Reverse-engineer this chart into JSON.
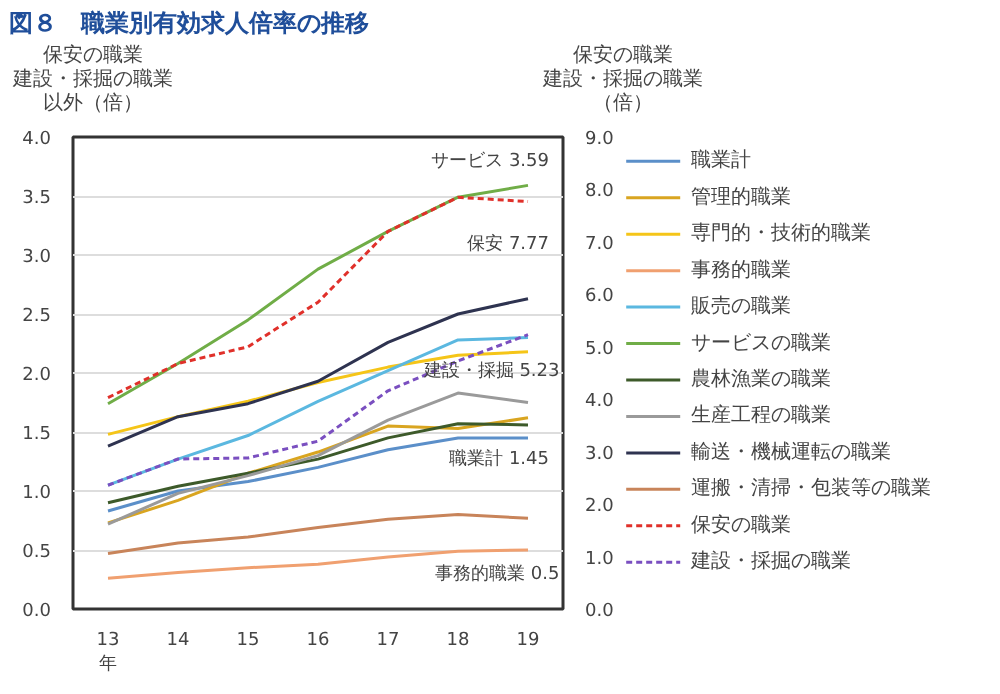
{
  "chart_data": {
    "type": "line",
    "title": "図８　職業別有効求人倍率の推移",
    "ylabel": "保安の職業建設・採掘の職業以外（倍）",
    "y2label": "保安の職業建設・採掘の職業（倍）",
    "x": [
      13,
      14,
      15,
      16,
      17,
      18,
      19
    ],
    "xlim": [
      12.5,
      19.5
    ],
    "xticks": [
      {
        "value": 13,
        "label": "13\n年"
      },
      14,
      15,
      16,
      17,
      18,
      19
    ],
    "ylim": [
      0,
      4
    ],
    "yticks": [
      {
        "value": 0,
        "label": "0.0"
      },
      0.5,
      {
        "value": 1,
        "label": "1.0"
      },
      1.5,
      {
        "value": 2,
        "label": "2.0"
      },
      2.5,
      {
        "value": 3,
        "label": "3.0"
      },
      3.5,
      {
        "value": 4,
        "label": "4.0"
      }
    ],
    "y2lim": [
      0,
      9
    ],
    "y2ticks": [
      {
        "value": 0,
        "label": "0.0"
      },
      {
        "value": 1,
        "label": "1.0"
      },
      {
        "value": 2,
        "label": "2.0"
      },
      {
        "value": 3,
        "label": "3.0"
      },
      {
        "value": 4,
        "label": "4.0"
      },
      {
        "value": 5,
        "label": "5.0"
      },
      {
        "value": 6,
        "label": "6.0"
      },
      {
        "value": 7,
        "label": "7.0"
      },
      {
        "value": 8,
        "label": "8.0"
      },
      {
        "value": 9,
        "label": "9.0"
      }
    ],
    "grid": "y",
    "legend": "right",
    "marker": "none",
    "series": [
      {
        "name": "職業計",
        "color": "#5b8fc9",
        "values": [
          0.83,
          1.0,
          1.08,
          1.2,
          1.35,
          1.45,
          1.45
        ]
      },
      {
        "name": "管理的職業",
        "color": "#d9a520",
        "values": [
          0.73,
          0.92,
          1.15,
          1.33,
          1.55,
          1.53,
          1.62
        ]
      },
      {
        "name": "専門的・技術的職業",
        "color": "#f5c518",
        "values": [
          1.48,
          1.63,
          1.76,
          1.92,
          2.05,
          2.15,
          2.18
        ]
      },
      {
        "name": "事務的職業",
        "color": "#f0a070",
        "values": [
          0.26,
          0.31,
          0.35,
          0.38,
          0.44,
          0.49,
          0.5
        ]
      },
      {
        "name": "販売の職業",
        "color": "#5bb8e0",
        "values": [
          1.05,
          1.27,
          1.47,
          1.76,
          2.02,
          2.28,
          2.3
        ]
      },
      {
        "name": "サービスの職業",
        "color": "#70ad47",
        "values": [
          1.74,
          2.08,
          2.45,
          2.88,
          3.2,
          3.49,
          3.59
        ]
      },
      {
        "name": "農林漁業の職業",
        "color": "#3d5a2a",
        "values": [
          0.9,
          1.04,
          1.15,
          1.27,
          1.45,
          1.57,
          1.56
        ]
      },
      {
        "name": "生産工程の職業",
        "color": "#9a9a9a",
        "values": [
          0.72,
          0.98,
          1.13,
          1.3,
          1.6,
          1.83,
          1.75
        ]
      },
      {
        "name": "輸送・機械運転の職業",
        "color": "#2e3350",
        "values": [
          1.38,
          1.63,
          1.74,
          1.93,
          2.26,
          2.5,
          2.63
        ]
      },
      {
        "name": "運搬・清掃・包装等の職業",
        "color": "#c8845a",
        "values": [
          0.47,
          0.56,
          0.61,
          0.69,
          0.76,
          0.8,
          0.77
        ]
      },
      {
        "name": "保安の職業",
        "color": "#e0302a",
        "axis": "y2",
        "line_style": "dashed",
        "values": [
          4.03,
          4.68,
          5.0,
          5.85,
          7.2,
          7.85,
          7.77
        ]
      },
      {
        "name": "建設・採掘の職業",
        "color": "#7a4fc0",
        "axis": "y2",
        "line_style": "dashed",
        "values": [
          2.36,
          2.86,
          2.88,
          3.2,
          4.16,
          4.73,
          5.23
        ]
      }
    ],
    "annotations": [
      "サービス 3.59",
      "保安 7.77",
      "建設・採掘 5.23",
      "職業計 1.45",
      "事務的職業 0.5"
    ]
  }
}
